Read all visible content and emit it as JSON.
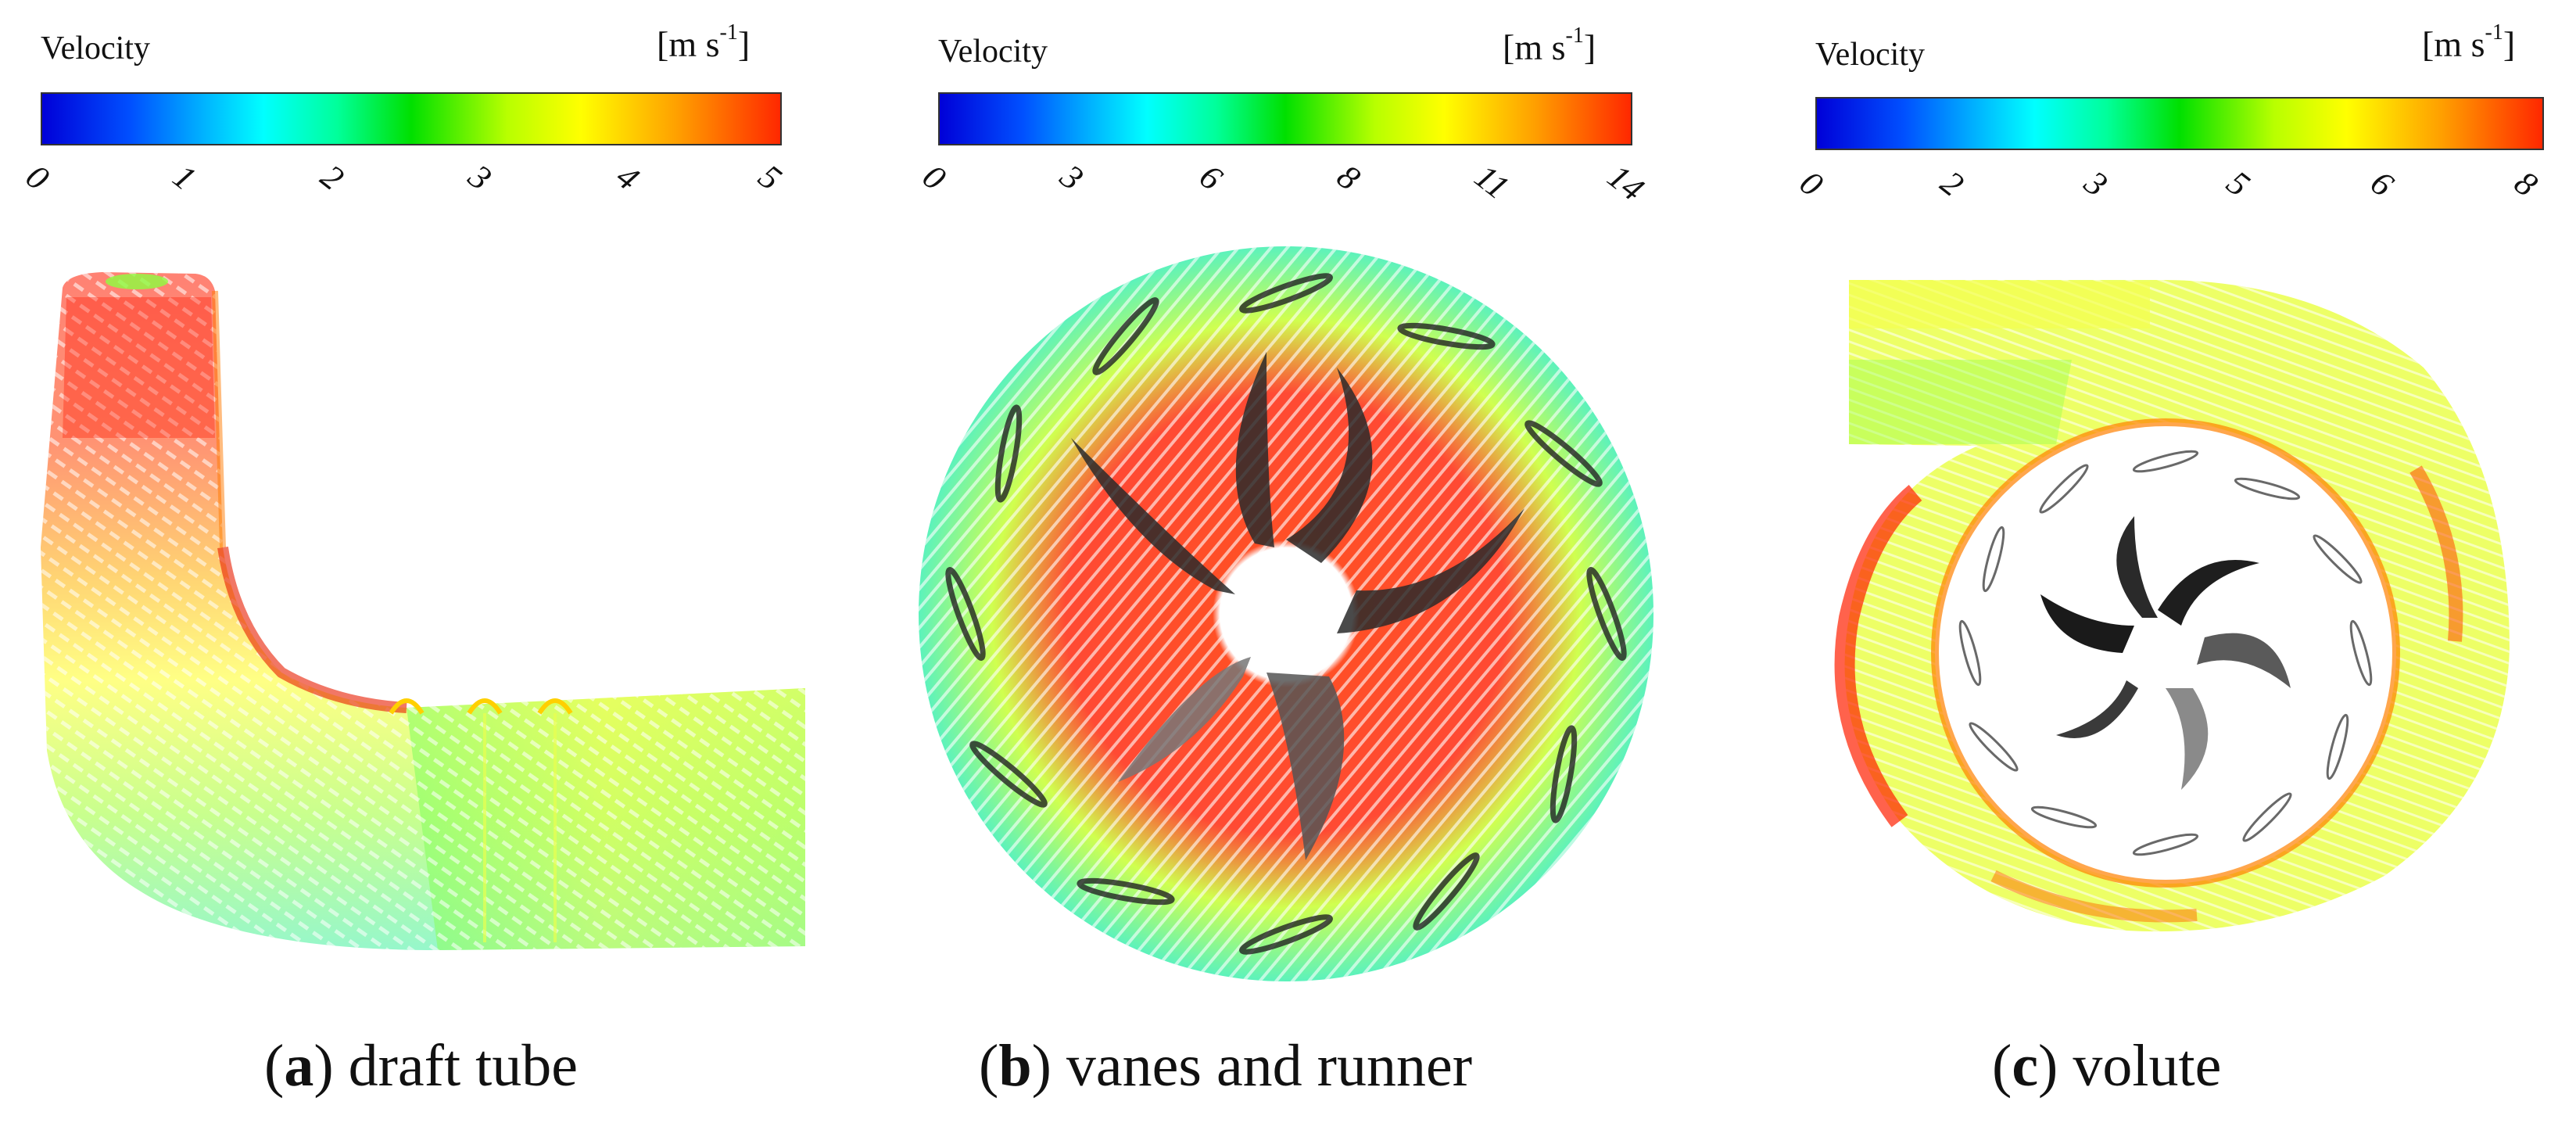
{
  "panels": [
    {
      "id": "a",
      "colorbar": {
        "label": "Velocity",
        "unit_base": "[m s",
        "unit_exp": "-1",
        "unit_close": "]",
        "ticks": [
          "0",
          "1",
          "2",
          "3",
          "4",
          "5"
        ]
      },
      "caption": {
        "letter": "a",
        "text": " draft tube"
      }
    },
    {
      "id": "b",
      "colorbar": {
        "label": "Velocity",
        "unit_base": "[m s",
        "unit_exp": "-1",
        "unit_close": "]",
        "ticks": [
          "0",
          "3",
          "6",
          "8",
          "11",
          "14"
        ]
      },
      "caption": {
        "letter": "b",
        "text": " vanes and runner"
      }
    },
    {
      "id": "c",
      "colorbar": {
        "label": "Velocity",
        "unit_base": "[m s",
        "unit_exp": "-1",
        "unit_close": "]",
        "ticks": [
          "0",
          "2",
          "3",
          "5",
          "6",
          "8"
        ]
      },
      "caption": {
        "letter": "c",
        "text": " volute"
      }
    }
  ],
  "colormap": [
    "#0000d8",
    "#0050ff",
    "#00b4ff",
    "#00ffff",
    "#00ff9a",
    "#00e000",
    "#b8ff00",
    "#ffff00",
    "#ffa000",
    "#ff2800"
  ]
}
